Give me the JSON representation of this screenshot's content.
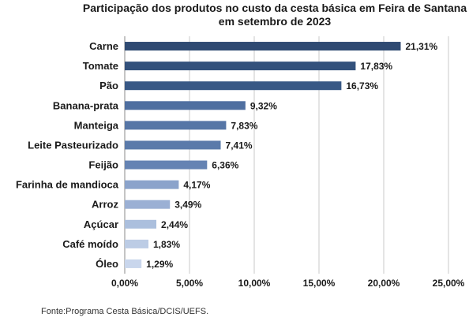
{
  "chart_data": {
    "type": "bar",
    "orientation": "horizontal",
    "title_lines": [
      "Participação dos produtos no custo da cesta básica em Feira de Santana",
      "em setembro de 2023"
    ],
    "categories": [
      "Carne",
      "Tomate",
      "Pão",
      "Banana-prata",
      "Manteiga",
      "Leite Pasteurizado",
      "Feijão",
      "Farinha de mandioca",
      "Arroz",
      "Açúcar",
      "Café moído",
      "Óleo"
    ],
    "values": [
      21.31,
      17.83,
      16.73,
      9.32,
      7.83,
      7.41,
      6.36,
      4.17,
      3.49,
      2.44,
      1.83,
      1.29
    ],
    "value_labels": [
      "21,31%",
      "17,83%",
      "16,73%",
      "9,32%",
      "7,83%",
      "7,41%",
      "6,36%",
      "4,17%",
      "3,49%",
      "2,44%",
      "1,83%",
      "1,29%"
    ],
    "bar_colors": [
      "#2f4a72",
      "#33517c",
      "#385885",
      "#4f6fa0",
      "#5676a6",
      "#5a7aaa",
      "#6583b3",
      "#8ba3cb",
      "#9bb0d4",
      "#abbfdd",
      "#bcccE5",
      "#c9d6ec"
    ],
    "x_ticks": [
      "0,00%",
      "5,00%",
      "10,00%",
      "15,00%",
      "20,00%",
      "25,00%"
    ],
    "xlim": [
      0,
      25
    ],
    "grid": "vertical",
    "xlabel": "",
    "ylabel": ""
  },
  "source_text": "Fonte:Programa Cesta Básica/DCIS/UEFS."
}
